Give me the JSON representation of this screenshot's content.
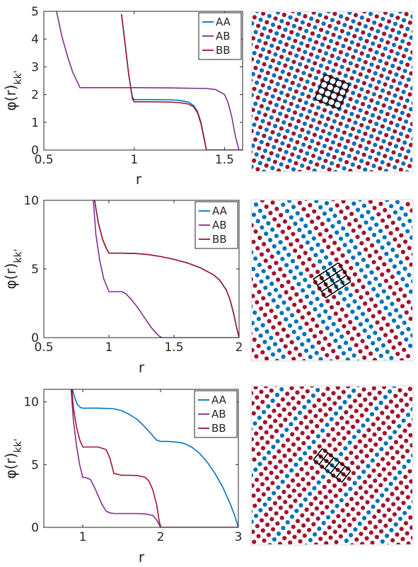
{
  "colors": {
    "AA": "#0072BD",
    "AB": "#7E2F8E",
    "BB": "#A2142F",
    "axis": "#262626"
  },
  "ylabel_parts": {
    "phi": "φ",
    "paren": "(r)",
    "sub": "kk'"
  },
  "chart_data": [
    {
      "type": "line",
      "xlabel": "r",
      "ylabel": "φ(r)kk'",
      "xlim": [
        0.5,
        1.6
      ],
      "ylim": [
        0,
        5
      ],
      "xticks": [
        0.5,
        1,
        1.5
      ],
      "xtick_labels": [
        "0.5",
        "1",
        "1.5"
      ],
      "yticks": [
        0,
        1,
        2,
        3,
        4,
        5
      ],
      "ytick_labels": [
        "0",
        "1",
        "2",
        "3",
        "4",
        "5"
      ],
      "grid": false,
      "legend": "top-right",
      "series": [
        {
          "name": "AA",
          "x": [
            0.93,
            0.95,
            0.97,
            0.99,
            1.0,
            1.05,
            1.1,
            1.2,
            1.25,
            1.3,
            1.33,
            1.35,
            1.37,
            1.385,
            1.4,
            1.6
          ],
          "y": [
            4.9,
            3.8,
            2.7,
            1.9,
            1.82,
            1.82,
            1.82,
            1.81,
            1.79,
            1.73,
            1.6,
            1.4,
            1.0,
            0.5,
            0,
            0
          ]
        },
        {
          "name": "AB",
          "x": [
            0.57,
            0.6,
            0.63,
            0.66,
            0.7,
            0.8,
            1.0,
            1.2,
            1.4,
            1.45,
            1.5,
            1.52,
            1.54,
            1.56,
            1.58,
            1.6
          ],
          "y": [
            5.0,
            4.1,
            3.4,
            2.8,
            2.25,
            2.25,
            2.25,
            2.24,
            2.22,
            2.18,
            2.0,
            1.7,
            1.2,
            0.5,
            0,
            0
          ]
        },
        {
          "name": "BB",
          "x": [
            0.93,
            0.95,
            0.97,
            0.99,
            1.0,
            1.05,
            1.1,
            1.2,
            1.25,
            1.3,
            1.33,
            1.35,
            1.37,
            1.385,
            1.4,
            1.6
          ],
          "y": [
            4.9,
            3.8,
            2.7,
            1.85,
            1.74,
            1.74,
            1.74,
            1.73,
            1.71,
            1.66,
            1.55,
            1.35,
            0.95,
            0.45,
            0,
            0
          ]
        }
      ]
    },
    {
      "type": "line",
      "xlabel": "r",
      "ylabel": "φ(r)kk'",
      "xlim": [
        0.5,
        2
      ],
      "ylim": [
        0,
        10
      ],
      "xticks": [
        0.5,
        1,
        1.5,
        2
      ],
      "xtick_labels": [
        "0.5",
        "1",
        "1.5",
        "2"
      ],
      "yticks": [
        0,
        5,
        10
      ],
      "ytick_labels": [
        "0",
        "5",
        "10"
      ],
      "grid": false,
      "legend": "top-right",
      "series": [
        {
          "name": "AA",
          "x": [
            0.89,
            0.9,
            0.92,
            0.95,
            0.98,
            1.0,
            1.1,
            1.2,
            1.3,
            1.4,
            1.5,
            1.6,
            1.7,
            1.8,
            1.85,
            1.9,
            1.93,
            1.96,
            1.98,
            2.0
          ],
          "y": [
            10,
            9.4,
            8.3,
            7.2,
            6.5,
            6.15,
            6.15,
            6.13,
            6.05,
            5.9,
            5.7,
            5.45,
            5.1,
            4.6,
            4.2,
            3.5,
            2.8,
            1.7,
            0.8,
            0
          ]
        },
        {
          "name": "AB",
          "x": [
            0.88,
            0.9,
            0.93,
            0.96,
            1.0,
            1.05,
            1.1,
            1.13,
            1.17,
            1.22,
            1.27,
            1.32,
            1.36,
            1.39,
            1.41,
            2.0
          ],
          "y": [
            10,
            7.5,
            5.6,
            4.3,
            3.35,
            3.35,
            3.35,
            3.2,
            2.8,
            2.2,
            1.5,
            0.8,
            0.35,
            0.08,
            0,
            0
          ]
        },
        {
          "name": "BB",
          "x": [
            0.89,
            0.9,
            0.92,
            0.95,
            0.98,
            1.0,
            1.1,
            1.2,
            1.3,
            1.4,
            1.5,
            1.6,
            1.7,
            1.8,
            1.85,
            1.9,
            1.93,
            1.96,
            1.98,
            2.0
          ],
          "y": [
            10,
            9.4,
            8.3,
            7.2,
            6.5,
            6.15,
            6.15,
            6.13,
            6.05,
            5.9,
            5.7,
            5.45,
            5.1,
            4.6,
            4.2,
            3.5,
            2.8,
            1.7,
            0.8,
            0
          ]
        }
      ]
    },
    {
      "type": "line",
      "xlabel": "r",
      "ylabel": "φ(r)kk'",
      "xlim": [
        0.5,
        3
      ],
      "ylim": [
        0,
        11
      ],
      "xticks": [
        1,
        2,
        3
      ],
      "xtick_labels": [
        "1",
        "2",
        "3"
      ],
      "yticks": [
        0,
        5,
        10
      ],
      "ytick_labels": [
        "0",
        "5",
        "10"
      ],
      "grid": false,
      "legend": "top-right",
      "series": [
        {
          "name": "AA",
          "x": [
            0.87,
            0.88,
            0.9,
            0.93,
            0.97,
            1.0,
            1.2,
            1.4,
            1.5,
            1.6,
            1.7,
            1.8,
            1.9,
            1.95,
            2.0,
            2.1,
            2.2,
            2.3,
            2.4,
            2.5,
            2.6,
            2.7,
            2.8,
            2.9,
            2.95,
            3.0
          ],
          "y": [
            11,
            10.7,
            10.3,
            9.8,
            9.55,
            9.5,
            9.5,
            9.45,
            9.3,
            9.0,
            8.6,
            8.0,
            7.3,
            6.95,
            6.85,
            6.85,
            6.8,
            6.7,
            6.4,
            5.9,
            5.2,
            4.3,
            3.2,
            1.8,
            1.0,
            0
          ]
        },
        {
          "name": "AB",
          "x": [
            0.85,
            0.88,
            0.92,
            0.96,
            1.0,
            1.05,
            1.1,
            1.15,
            1.2,
            1.25,
            1.3,
            1.35,
            1.4,
            1.5,
            1.7,
            1.8,
            1.9,
            1.95,
            1.98,
            2.0,
            3.0
          ],
          "y": [
            11,
            8.5,
            6.5,
            5.0,
            4.0,
            3.95,
            3.8,
            3.2,
            2.5,
            1.8,
            1.3,
            1.15,
            1.1,
            1.1,
            1.1,
            1.08,
            0.95,
            0.6,
            0.25,
            0,
            0
          ]
        },
        {
          "name": "BB",
          "x": [
            0.86,
            0.88,
            0.92,
            0.96,
            1.0,
            1.1,
            1.2,
            1.3,
            1.35,
            1.4,
            1.5,
            1.6,
            1.7,
            1.8,
            1.85,
            1.9,
            1.95,
            1.98,
            2.0,
            3.0
          ],
          "y": [
            11,
            9.5,
            8.0,
            7.0,
            6.4,
            6.4,
            6.4,
            6.2,
            5.5,
            4.3,
            4.15,
            4.15,
            4.13,
            4.0,
            3.7,
            3.0,
            1.8,
            0.6,
            0,
            0
          ]
        }
      ]
    },
    {
      "type": "scatter",
      "lattice": {
        "a": 9.4,
        "angle_deg": 22,
        "pattern": "checkerboard",
        "colors": [
          "AA",
          "BB"
        ]
      },
      "unit_cell": {
        "rows": 4,
        "cols": 4,
        "angle_deg": 22
      },
      "grid": false
    },
    {
      "type": "scatter",
      "lattice": {
        "a": 10.6,
        "angle_deg": -33,
        "pattern": "stripe-2-2",
        "colors": [
          "AA",
          "BB"
        ]
      },
      "unit_cell": {
        "rows": 3,
        "cols": 4,
        "angle_deg": -33
      },
      "grid": false
    },
    {
      "type": "scatter",
      "lattice": {
        "a": 10.2,
        "angle_deg": 38,
        "pattern": "stripe-1-3",
        "colors": [
          "AA",
          "BB"
        ]
      },
      "unit_cell": {
        "rows": 2,
        "cols": 5,
        "angle_deg": 38
      },
      "grid": false
    }
  ]
}
